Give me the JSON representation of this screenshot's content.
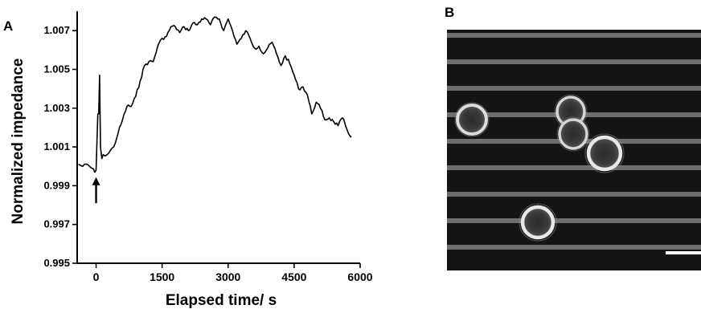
{
  "chart_data": [
    {
      "type": "line",
      "panel_label": "A",
      "xlabel": "Elapsed time/ s",
      "ylabel": "Normalized impedance",
      "xlim": [
        -430,
        6000
      ],
      "ylim": [
        0.995,
        1.008
      ],
      "x_ticks": [
        0,
        1500,
        3000,
        4500,
        6000
      ],
      "x_tick_labels": [
        "0",
        "1500",
        "3000",
        "4500",
        "6000"
      ],
      "y_ticks": [
        0.995,
        0.997,
        0.999,
        1.001,
        1.003,
        1.005,
        1.007
      ],
      "y_tick_labels": [
        "0.995",
        "0.997",
        "0.999",
        "1.001",
        "1.003",
        "1.005",
        "1.007"
      ],
      "grid": false,
      "series": [
        {
          "x": [
            -400,
            -300,
            -200,
            -100,
            -30,
            0,
            40,
            60,
            80,
            100,
            130,
            160,
            250,
            400,
            500,
            600,
            700,
            800,
            900,
            1000,
            1100,
            1200,
            1300,
            1400,
            1500,
            1600,
            1700,
            1800,
            1900,
            2000,
            2100,
            2200,
            2300,
            2400,
            2500,
            2600,
            2700,
            2800,
            2900,
            3000,
            3100,
            3200,
            3300,
            3400,
            3500,
            3600,
            3700,
            3800,
            3900,
            4000,
            4100,
            4200,
            4300,
            4400,
            4500,
            4600,
            4700,
            4800,
            4900,
            5000,
            5100,
            5200,
            5300,
            5400,
            5500,
            5600,
            5700,
            5800
          ],
          "y": [
            1.0001,
            1.0,
            1.0001,
            0.9999,
            0.9997,
            0.9998,
            1.0027,
            1.0027,
            1.0047,
            1.001,
            1.0004,
            1.0006,
            1.0006,
            1.001,
            1.0017,
            1.0024,
            1.0031,
            1.0031,
            1.0036,
            1.0044,
            1.0052,
            1.0054,
            1.0054,
            1.0062,
            1.0066,
            1.0067,
            1.0072,
            1.0072,
            1.0069,
            1.0072,
            1.007,
            1.0074,
            1.0073,
            1.0076,
            1.0076,
            1.0073,
            1.0077,
            1.0076,
            1.007,
            1.0076,
            1.007,
            1.0063,
            1.0066,
            1.007,
            1.0066,
            1.0061,
            1.0062,
            1.0058,
            1.0061,
            1.0064,
            1.0058,
            1.0052,
            1.0057,
            1.0053,
            1.0047,
            1.004,
            1.0041,
            1.0037,
            1.0027,
            1.0033,
            1.003,
            1.0024,
            1.0025,
            1.0023,
            1.0021,
            1.0025,
            1.0019,
            1.0015
          ]
        }
      ],
      "annotations": [
        {
          "type": "arrow",
          "x": 0,
          "y_from": 0.9981,
          "y_to": 0.9994,
          "direction": "up"
        }
      ]
    }
  ],
  "panel_b": {
    "panel_label": "B",
    "image": "micrograph",
    "description_icon": "cell-micrograph-image",
    "colors": {
      "background": "#151515",
      "stripe": "#6e6e6e",
      "cell": "#e8e8e8",
      "scale_bar": "#ffffff"
    }
  }
}
